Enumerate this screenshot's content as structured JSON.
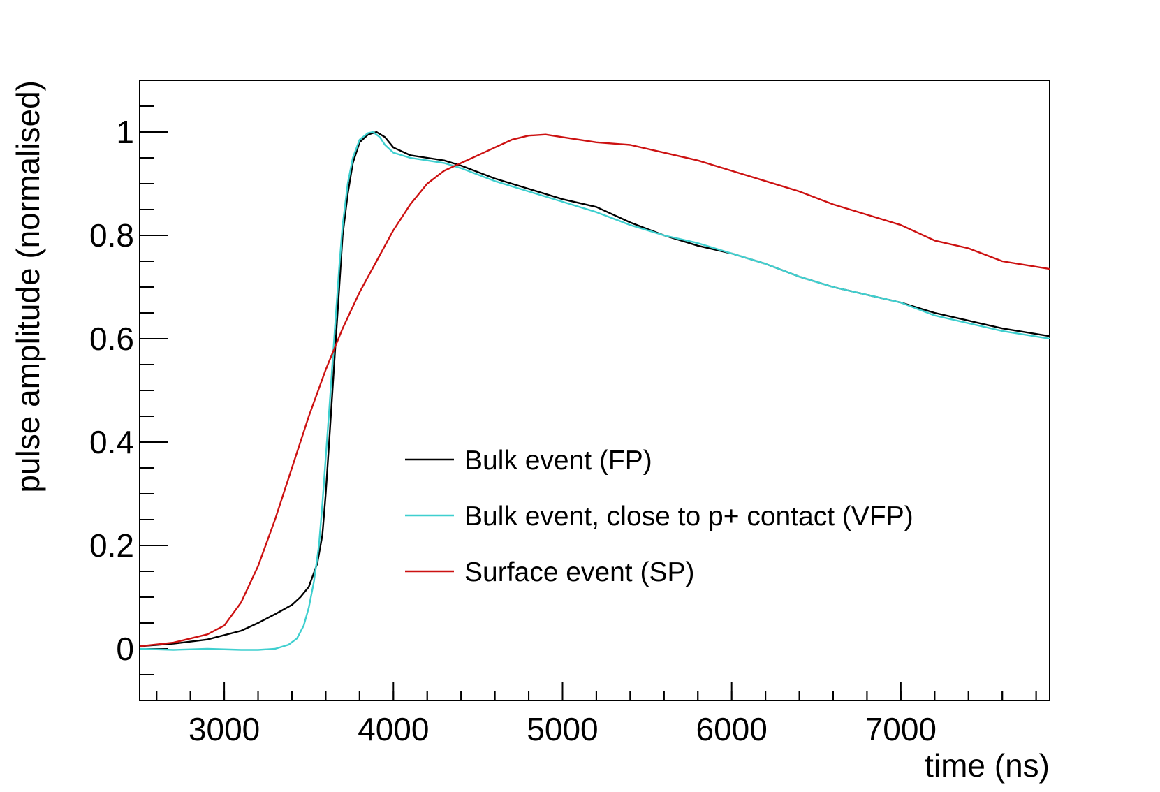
{
  "chart_data": {
    "type": "line",
    "title": "",
    "xlabel": "time (ns)",
    "ylabel": "pulse amplitude (normalised)",
    "xlim": [
      2500,
      7880
    ],
    "ylim": [
      -0.1,
      1.1
    ],
    "xticks": [
      3000,
      4000,
      5000,
      6000,
      7000
    ],
    "xtick_labels": [
      "3000",
      "4000",
      "5000",
      "6000",
      "7000"
    ],
    "yticks": [
      0,
      0.2,
      0.4,
      0.6,
      0.8,
      1
    ],
    "ytick_labels": [
      "0",
      "0.2",
      "0.4",
      "0.6",
      "0.8",
      "1"
    ],
    "legend_position": "center-right",
    "series": [
      {
        "name": "Bulk event (FP)",
        "color": "#000000",
        "x": [
          2500,
          2700,
          2900,
          3100,
          3200,
          3300,
          3400,
          3450,
          3500,
          3550,
          3580,
          3600,
          3620,
          3650,
          3680,
          3700,
          3730,
          3760,
          3800,
          3850,
          3900,
          3950,
          4000,
          4100,
          4200,
          4300,
          4400,
          4600,
          4800,
          5000,
          5200,
          5400,
          5600,
          5800,
          6000,
          6200,
          6400,
          6600,
          6800,
          7000,
          7200,
          7400,
          7600,
          7880
        ],
        "y": [
          0.005,
          0.01,
          0.018,
          0.035,
          0.05,
          0.067,
          0.085,
          0.1,
          0.12,
          0.165,
          0.22,
          0.3,
          0.4,
          0.55,
          0.7,
          0.8,
          0.88,
          0.94,
          0.98,
          0.995,
          1.0,
          0.99,
          0.97,
          0.955,
          0.95,
          0.945,
          0.935,
          0.91,
          0.89,
          0.87,
          0.855,
          0.825,
          0.8,
          0.78,
          0.765,
          0.745,
          0.72,
          0.7,
          0.685,
          0.67,
          0.65,
          0.635,
          0.62,
          0.605
        ]
      },
      {
        "name": "Bulk event, close to p+ contact (VFP)",
        "color": "#3fcfcf",
        "x": [
          2500,
          2700,
          2900,
          3100,
          3200,
          3300,
          3380,
          3430,
          3470,
          3500,
          3530,
          3560,
          3580,
          3600,
          3620,
          3650,
          3680,
          3700,
          3730,
          3760,
          3800,
          3850,
          3880,
          3920,
          3950,
          4000,
          4100,
          4200,
          4300,
          4400,
          4600,
          4800,
          5000,
          5200,
          5400,
          5600,
          5800,
          6000,
          6200,
          6400,
          6600,
          6800,
          7000,
          7200,
          7400,
          7600,
          7880
        ],
        "y": [
          0.0,
          -0.002,
          0.0,
          -0.002,
          -0.002,
          0.0,
          0.008,
          0.02,
          0.045,
          0.08,
          0.13,
          0.2,
          0.28,
          0.37,
          0.46,
          0.6,
          0.74,
          0.82,
          0.9,
          0.95,
          0.985,
          0.998,
          1.0,
          0.99,
          0.975,
          0.96,
          0.95,
          0.945,
          0.94,
          0.93,
          0.905,
          0.885,
          0.865,
          0.845,
          0.82,
          0.8,
          0.785,
          0.765,
          0.745,
          0.72,
          0.7,
          0.685,
          0.67,
          0.645,
          0.63,
          0.615,
          0.6
        ]
      },
      {
        "name": "Surface event (SP)",
        "color": "#cc1111",
        "x": [
          2500,
          2700,
          2900,
          3000,
          3100,
          3200,
          3300,
          3400,
          3500,
          3600,
          3700,
          3800,
          3900,
          4000,
          4100,
          4200,
          4300,
          4400,
          4500,
          4600,
          4700,
          4800,
          4900,
          5000,
          5200,
          5400,
          5600,
          5800,
          6000,
          6200,
          6400,
          6600,
          6800,
          7000,
          7200,
          7400,
          7600,
          7880
        ],
        "y": [
          0.005,
          0.012,
          0.028,
          0.045,
          0.09,
          0.16,
          0.25,
          0.35,
          0.45,
          0.54,
          0.62,
          0.69,
          0.75,
          0.81,
          0.86,
          0.9,
          0.925,
          0.94,
          0.955,
          0.97,
          0.985,
          0.993,
          0.995,
          0.99,
          0.98,
          0.975,
          0.96,
          0.945,
          0.925,
          0.905,
          0.885,
          0.86,
          0.84,
          0.82,
          0.79,
          0.775,
          0.75,
          0.735
        ]
      }
    ]
  }
}
